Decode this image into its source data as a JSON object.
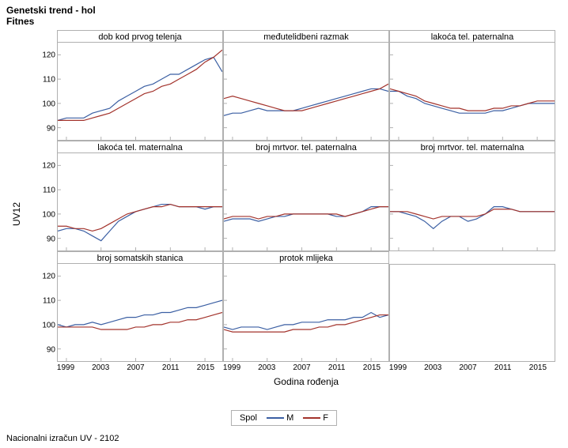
{
  "title_line1": "Genetski trend - hol",
  "title_line2": "Fitnes",
  "footer": "Nacionalni izračun UV - 2102",
  "y_axis_label": "UV12",
  "x_axis_label": "Godina rođenja",
  "ylim": [
    85,
    125
  ],
  "yticks": [
    90,
    100,
    110,
    120
  ],
  "xlim": [
    1998,
    2017
  ],
  "xticks": [
    1999,
    2003,
    2007,
    2011,
    2015
  ],
  "colors": {
    "M": "#3b5fa3",
    "F": "#a3332c",
    "panel_border": "#b0b0b0",
    "text": "#000000",
    "background": "#ffffff"
  },
  "legend": {
    "title": "Spol",
    "items": [
      {
        "key": "M",
        "label": "M"
      },
      {
        "key": "F",
        "label": "F"
      }
    ]
  },
  "x_values": [
    1998,
    1999,
    2000,
    2001,
    2002,
    2003,
    2004,
    2005,
    2006,
    2007,
    2008,
    2009,
    2010,
    2011,
    2012,
    2013,
    2014,
    2015,
    2016,
    2017
  ],
  "panels": [
    {
      "title": "dob kod prvog telenja",
      "series": {
        "M": [
          93,
          94,
          94,
          94,
          96,
          97,
          98,
          101,
          103,
          105,
          107,
          108,
          110,
          112,
          112,
          114,
          116,
          118,
          119,
          113
        ],
        "F": [
          93,
          93,
          93,
          93,
          94,
          95,
          96,
          98,
          100,
          102,
          104,
          105,
          107,
          108,
          110,
          112,
          114,
          117,
          119,
          122
        ]
      }
    },
    {
      "title": "međutelidbeni razmak",
      "series": {
        "M": [
          95,
          96,
          96,
          97,
          98,
          97,
          97,
          97,
          97,
          98,
          99,
          100,
          101,
          102,
          103,
          104,
          105,
          106,
          106,
          105
        ],
        "F": [
          102,
          103,
          102,
          101,
          100,
          99,
          98,
          97,
          97,
          97,
          98,
          99,
          100,
          101,
          102,
          103,
          104,
          105,
          106,
          108
        ]
      }
    },
    {
      "title": "lakoća tel. paternalna",
      "series": {
        "M": [
          105,
          105,
          103,
          102,
          100,
          99,
          98,
          97,
          96,
          96,
          96,
          96,
          97,
          97,
          98,
          99,
          100,
          100,
          100,
          100
        ],
        "F": [
          106,
          105,
          104,
          103,
          101,
          100,
          99,
          98,
          98,
          97,
          97,
          97,
          98,
          98,
          99,
          99,
          100,
          101,
          101,
          101
        ]
      }
    },
    {
      "title": "lakoća tel. maternalna",
      "series": {
        "M": [
          93,
          94,
          94,
          93,
          91,
          89,
          93,
          97,
          99,
          101,
          102,
          103,
          104,
          104,
          103,
          103,
          103,
          102,
          103,
          103
        ],
        "F": [
          95,
          95,
          94,
          94,
          93,
          94,
          96,
          98,
          100,
          101,
          102,
          103,
          103,
          104,
          103,
          103,
          103,
          103,
          103,
          103
        ]
      }
    },
    {
      "title": "broj mrtvor. tel. paternalna",
      "series": {
        "M": [
          97,
          98,
          98,
          98,
          97,
          98,
          99,
          99,
          100,
          100,
          100,
          100,
          100,
          99,
          99,
          100,
          101,
          103,
          103,
          103
        ],
        "F": [
          98,
          99,
          99,
          99,
          98,
          99,
          99,
          100,
          100,
          100,
          100,
          100,
          100,
          100,
          99,
          100,
          101,
          102,
          103,
          103
        ]
      }
    },
    {
      "title": "broj mrtvor. tel. maternalna",
      "series": {
        "M": [
          101,
          101,
          100,
          99,
          97,
          94,
          97,
          99,
          99,
          97,
          98,
          100,
          103,
          103,
          102,
          101,
          101,
          101,
          101,
          101
        ],
        "F": [
          101,
          101,
          101,
          100,
          99,
          98,
          99,
          99,
          99,
          99,
          99,
          100,
          102,
          102,
          102,
          101,
          101,
          101,
          101,
          101
        ]
      }
    },
    {
      "title": "broj somatskih stanica",
      "series": {
        "M": [
          100,
          99,
          100,
          100,
          101,
          100,
          101,
          102,
          103,
          103,
          104,
          104,
          105,
          105,
          106,
          107,
          107,
          108,
          109,
          110
        ],
        "F": [
          99,
          99,
          99,
          99,
          99,
          98,
          98,
          98,
          98,
          99,
          99,
          100,
          100,
          101,
          101,
          102,
          102,
          103,
          104,
          105
        ]
      }
    },
    {
      "title": "protok mlijeka",
      "series": {
        "M": [
          99,
          98,
          99,
          99,
          99,
          98,
          99,
          100,
          100,
          101,
          101,
          101,
          102,
          102,
          102,
          103,
          103,
          105,
          103,
          104
        ],
        "F": [
          98,
          97,
          97,
          97,
          97,
          97,
          97,
          97,
          98,
          98,
          98,
          99,
          99,
          100,
          100,
          101,
          102,
          103,
          104,
          104
        ]
      }
    },
    {
      "title": "",
      "empty": true
    }
  ]
}
